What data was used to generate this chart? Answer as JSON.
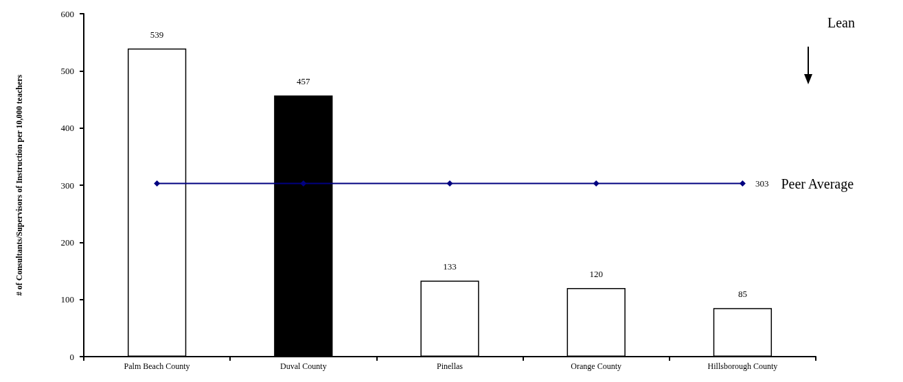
{
  "chart_data": {
    "type": "bar",
    "ylabel": "# of Consultants/Supervisors of Instruction per 10,000 teachers",
    "categories": [
      "Palm Beach County",
      "Duval County",
      "Pinellas",
      "Orange County",
      "Hillsborough County"
    ],
    "series": [
      {
        "values": [
          539,
          457,
          133,
          120,
          85
        ],
        "colors": [
          "#ffffff",
          "#000000",
          "#ffffff",
          "#ffffff",
          "#ffffff"
        ]
      },
      {
        "type": "line",
        "name": "Peer Average",
        "color": "#000080",
        "values": [
          303,
          303,
          303,
          303,
          303
        ],
        "value_labels": [
          null,
          null,
          null,
          null,
          "303"
        ],
        "marker": "diamond"
      }
    ],
    "data_labels": true,
    "ylim": [
      0,
      600
    ],
    "yticks": [
      0,
      100,
      200,
      300,
      400,
      500,
      600
    ],
    "grid": false,
    "legend": false,
    "annotations": [
      "Lean"
    ]
  }
}
